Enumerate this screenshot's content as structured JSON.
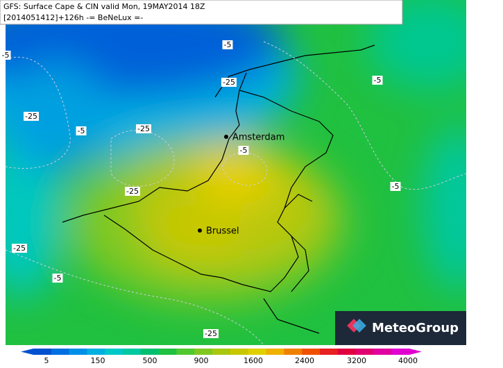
{
  "header": {
    "line1": "GFS: Surface Cape & CIN valid Mon, 19MAY2014 18Z",
    "line2": "[2014051412]+126h -= BeNeLux =-"
  },
  "cities": [
    "Amsterdam",
    "Brussel"
  ],
  "contour_labels": [
    "-5",
    "-5",
    "-25",
    "-5",
    "-25",
    "-5",
    "-25",
    "-5",
    "-5",
    "-25",
    "-25",
    "-5",
    "-25"
  ],
  "logo": "MeteoGroup",
  "colorbar": {
    "ticks": [
      5,
      150,
      500,
      900,
      1600,
      2400,
      3200,
      4000
    ],
    "colors": [
      "#0050d0",
      "#0070e0",
      "#0090e8",
      "#00b0e0",
      "#00c8c8",
      "#00c8a0",
      "#00c070",
      "#20c040",
      "#50c830",
      "#80c820",
      "#a8c810",
      "#c8c800",
      "#e0d000",
      "#f0b000",
      "#f08000",
      "#f05000",
      "#e82020",
      "#e00040",
      "#e00070",
      "#e000a0",
      "#e000d0"
    ]
  }
}
